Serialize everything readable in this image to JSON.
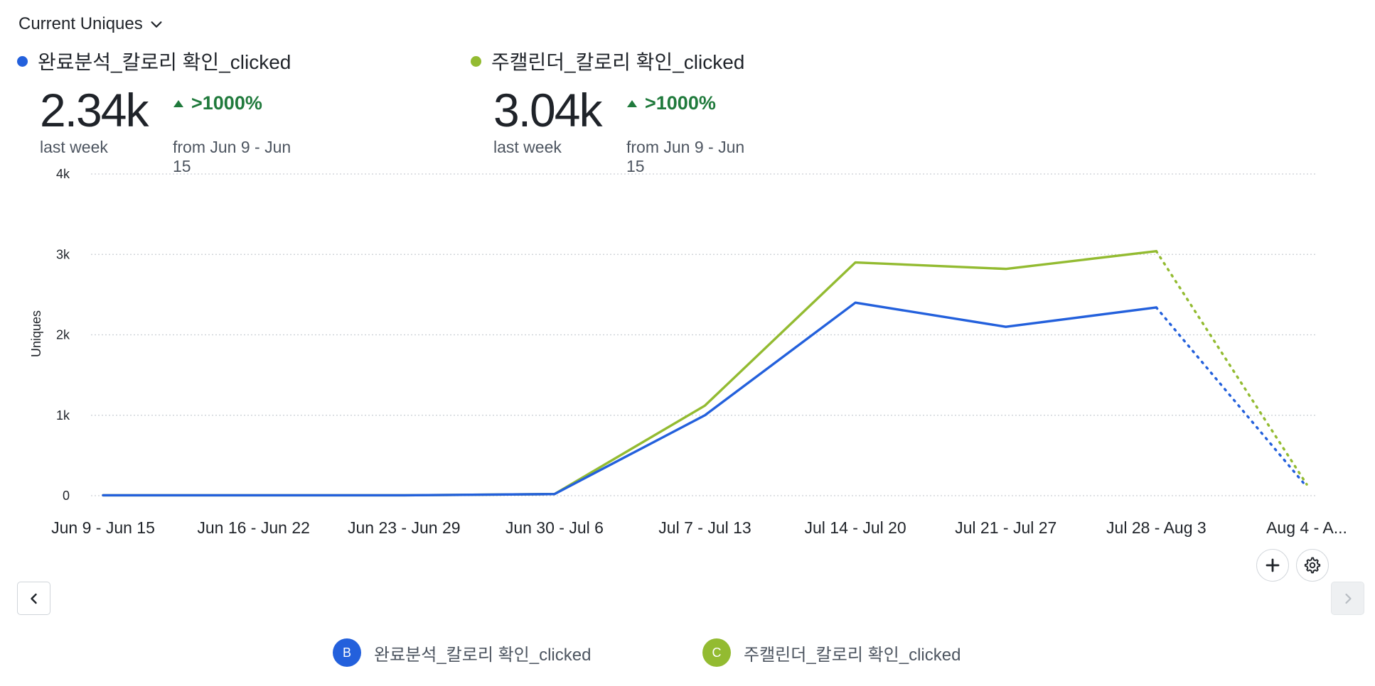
{
  "header": {
    "metric_selector_label": "Current Uniques"
  },
  "summary": [
    {
      "badge": "B",
      "name": "완료분석_칼로리 확인_clicked",
      "color": "#2360dc",
      "value": "2.34k",
      "period_label": "last week",
      "change": ">1000%",
      "change_label": "from Jun 9 - Jun 15"
    },
    {
      "badge": "C",
      "name": "주캘린더_칼로리 확인_clicked",
      "color": "#93bb31",
      "value": "3.04k",
      "period_label": "last week",
      "change": ">1000%",
      "change_label": "from Jun 9 - Jun 15"
    }
  ],
  "chart_data": {
    "type": "line",
    "title": "",
    "xlabel": "",
    "ylabel": "Uniques",
    "ylim": [
      0,
      4000
    ],
    "yticks": [
      0,
      1000,
      2000,
      3000,
      4000
    ],
    "ytick_labels": [
      "0",
      "1k",
      "2k",
      "3k",
      "4k"
    ],
    "grid": true,
    "categories": [
      "Jun 9 - Jun 15",
      "Jun 16 - Jun 22",
      "Jun 23 - Jun 29",
      "Jun 30 - Jul 6",
      "Jul 7 - Jul 13",
      "Jul 14 - Jul 20",
      "Jul 21 - Jul 27",
      "Jul 28 - Aug 3",
      "Aug 4 - A..."
    ],
    "incomplete_from_index": 7,
    "series": [
      {
        "name": "완료분석_칼로리 확인_clicked",
        "color": "#2360dc",
        "values": [
          5,
          5,
          5,
          20,
          1000,
          2400,
          2100,
          2340,
          110
        ]
      },
      {
        "name": "주캘린더_칼로리 확인_clicked",
        "color": "#93bb31",
        "values": [
          5,
          5,
          5,
          20,
          1120,
          2900,
          2820,
          3040,
          140
        ]
      }
    ]
  },
  "controls": {
    "add_label": "+",
    "settings_icon": "gear-icon",
    "prev_icon": "chevron-left-icon",
    "next_icon": "chevron-right-icon"
  }
}
